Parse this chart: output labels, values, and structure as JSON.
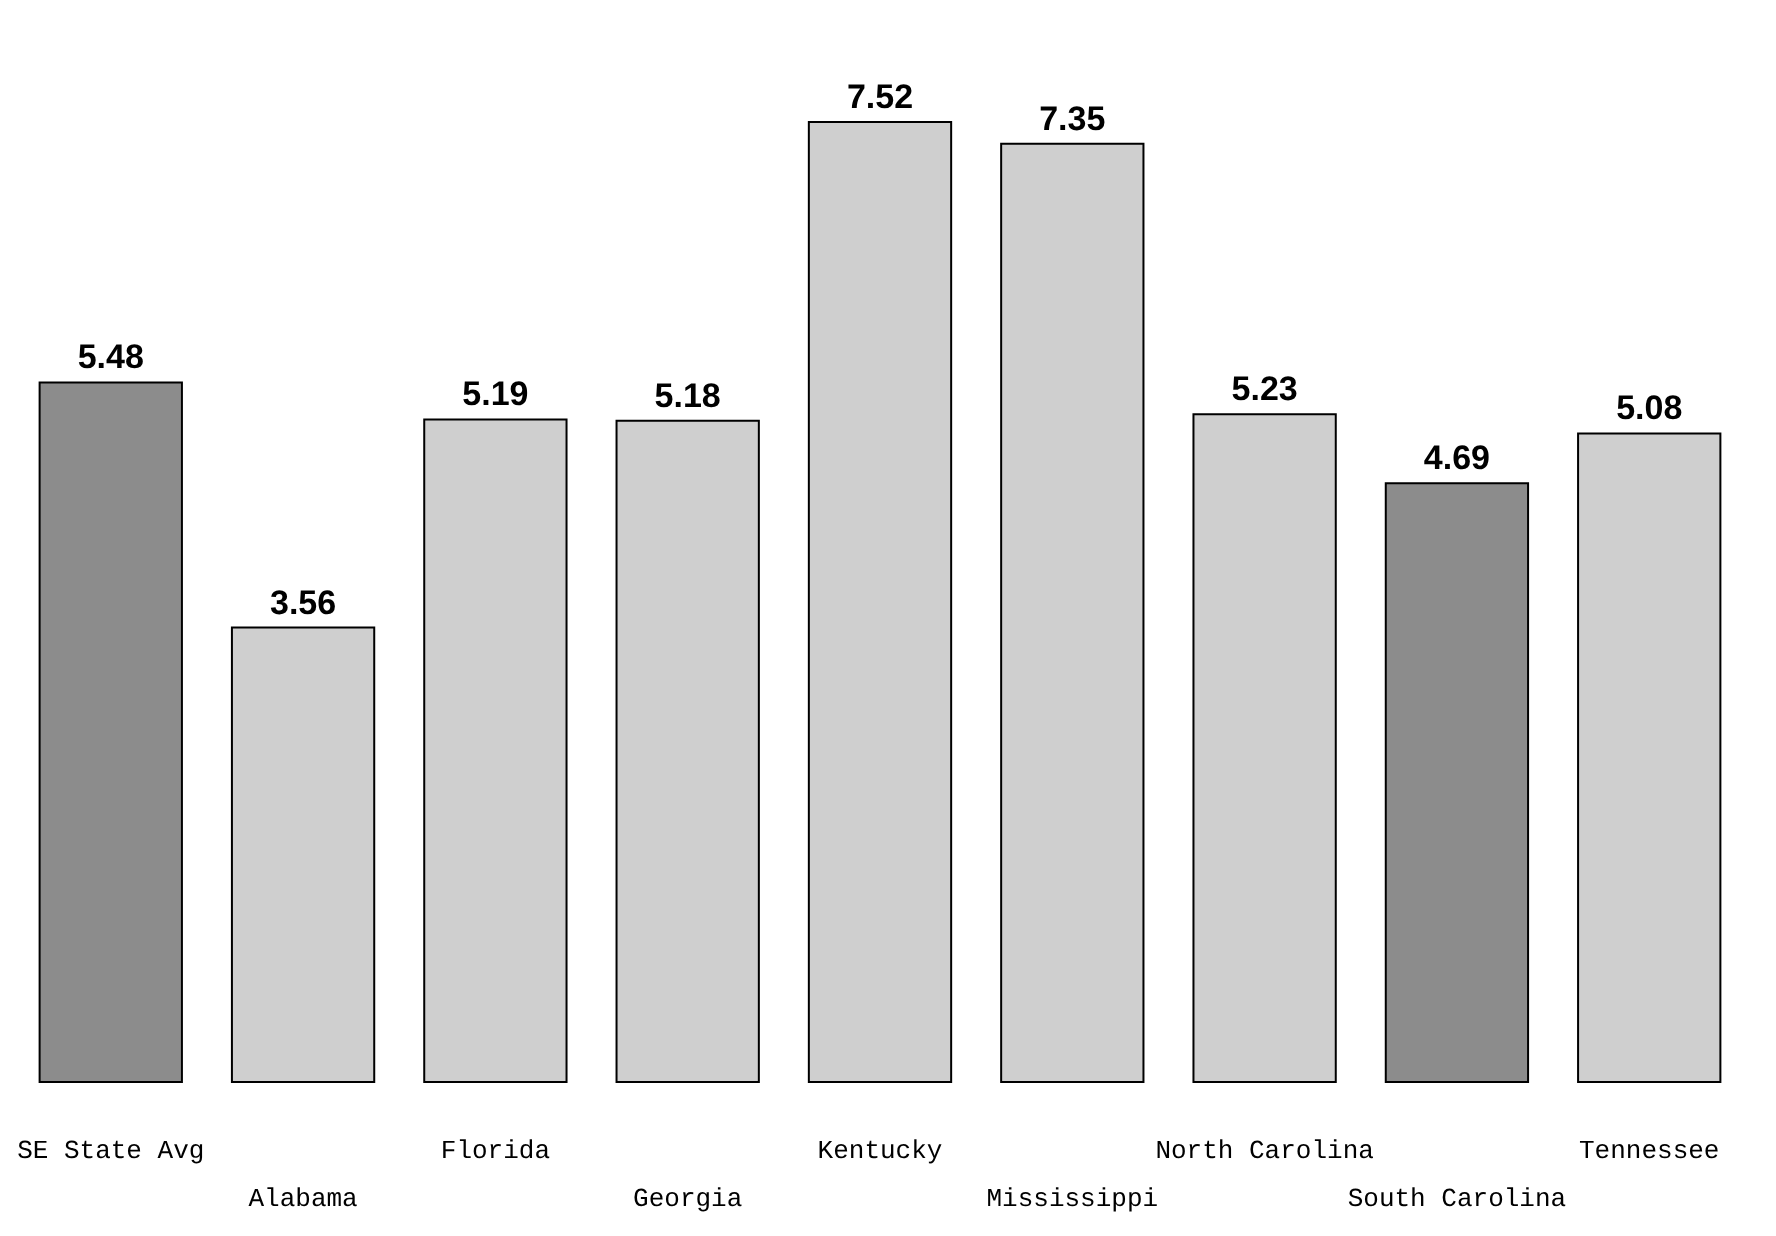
{
  "chart_data": {
    "type": "bar",
    "categories": [
      "SE State Avg",
      "Alabama",
      "Florida",
      "Georgia",
      "Kentucky",
      "Mississippi",
      "North Carolina",
      "South Carolina",
      "Tennessee"
    ],
    "values": [
      5.48,
      3.56,
      5.19,
      5.18,
      7.52,
      7.35,
      5.23,
      4.69,
      5.08
    ],
    "colors": [
      "#8c8c8c",
      "#cfcfcf",
      "#cfcfcf",
      "#cfcfcf",
      "#cfcfcf",
      "#cfcfcf",
      "#cfcfcf",
      "#8c8c8c",
      "#cfcfcf"
    ],
    "data_labels": true
  }
}
